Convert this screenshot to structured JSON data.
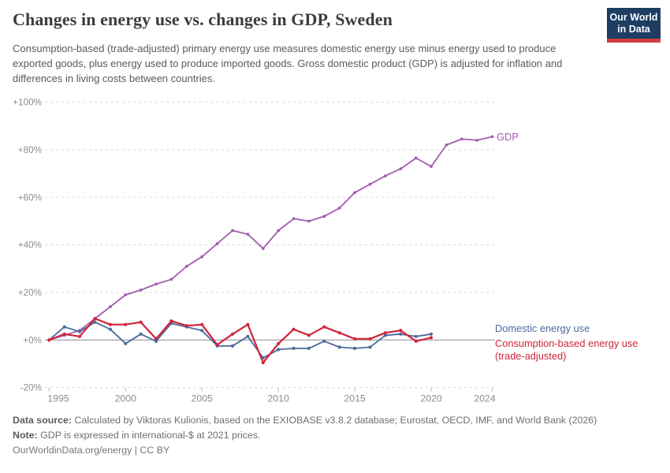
{
  "header": {
    "title": "Changes in energy use vs. changes in GDP, Sweden",
    "subtitle": "Consumption-based (trade-adjusted) primary energy use measures domestic energy use minus energy used to produce exported goods, plus energy used to produce imported goods. Gross domestic product (GDP) is adjusted for inflation and differences in living costs between countries.",
    "logo": {
      "line1": "Our World",
      "line2": "in Data",
      "bg_color": "#1d3d63",
      "bar_color": "#d13d42"
    }
  },
  "chart_data": {
    "type": "line",
    "x_start": 1995,
    "x_end": 2024,
    "x": [
      1995,
      1996,
      1997,
      1998,
      1999,
      2000,
      2001,
      2002,
      2003,
      2004,
      2005,
      2006,
      2007,
      2008,
      2009,
      2010,
      2011,
      2012,
      2013,
      2014,
      2015,
      2016,
      2017,
      2018,
      2019,
      2020,
      2021,
      2022,
      2023,
      2024
    ],
    "series": [
      {
        "name": "GDP",
        "color": "#a35cb0",
        "values": [
          0,
          2,
          4,
          9,
          14,
          19,
          21,
          23.5,
          25.5,
          31,
          35,
          40.5,
          46,
          44.5,
          38.5,
          46,
          51,
          50,
          52,
          55.5,
          62,
          65.5,
          69,
          72,
          76.5,
          73,
          82,
          84.5,
          84,
          85.5
        ]
      },
      {
        "name": "Domestic energy use",
        "color": "#4c6a9c",
        "values": [
          0,
          5.5,
          3.5,
          7.5,
          4.5,
          -1.5,
          2.5,
          -0.5,
          7,
          5.5,
          4,
          -2.5,
          -2.5,
          1.5,
          -7.5,
          -4,
          -3.5,
          -3.5,
          -0.5,
          -3,
          -3.5,
          -3,
          2,
          2.5,
          1.5,
          2.5,
          null,
          null,
          null,
          null
        ]
      },
      {
        "name": "Consumption-based energy use (trade-adjusted)",
        "color": "#d0243c",
        "values": [
          0,
          2.5,
          1.5,
          9,
          6.5,
          6.5,
          7.5,
          0.5,
          8,
          6,
          6.5,
          -2,
          2.5,
          6.5,
          -9.5,
          -1.5,
          4.5,
          2,
          5.5,
          3,
          0.5,
          0.5,
          3,
          4,
          -0.5,
          1,
          null,
          null,
          null,
          null
        ]
      }
    ],
    "ylim": [
      -20,
      100
    ],
    "yticks": [
      {
        "v": 100,
        "label": "+100%"
      },
      {
        "v": 80,
        "label": "+80%"
      },
      {
        "v": 60,
        "label": "+60%"
      },
      {
        "v": 40,
        "label": "+40%"
      },
      {
        "v": 20,
        "label": "+20%"
      },
      {
        "v": 0,
        "label": "+0%"
      },
      {
        "v": -20,
        "label": "-20%"
      }
    ],
    "xticks": [
      1995,
      2000,
      2005,
      2010,
      2015,
      2020,
      2024
    ],
    "grid": "horizontal-dashed",
    "legend_position": "right-end-labels"
  },
  "legend": {
    "gdp": "GDP",
    "domestic": "Domestic energy use",
    "consumption_line1": "Consumption-based energy use",
    "consumption_line2": "(trade-adjusted)"
  },
  "footer": {
    "data_source_label": "Data source:",
    "data_source_text": "Calculated by Viktoras Kulionis, based on the EXIOBASE v3.8.2 database; Eurostat, OECD, IMF, and World Bank (2026)",
    "note_label": "Note:",
    "note_text": "GDP is expressed in international-$ at 2021 prices.",
    "url_line": "OurWorldinData.org/energy | CC BY"
  },
  "colors": {
    "gdp": "#a35cb0",
    "domestic": "#4c6a9c",
    "consumption": "#d0243c",
    "gridline": "#d9d9d9",
    "zero_line": "#8c8c8c",
    "axis_text": "#8d8d8d"
  }
}
